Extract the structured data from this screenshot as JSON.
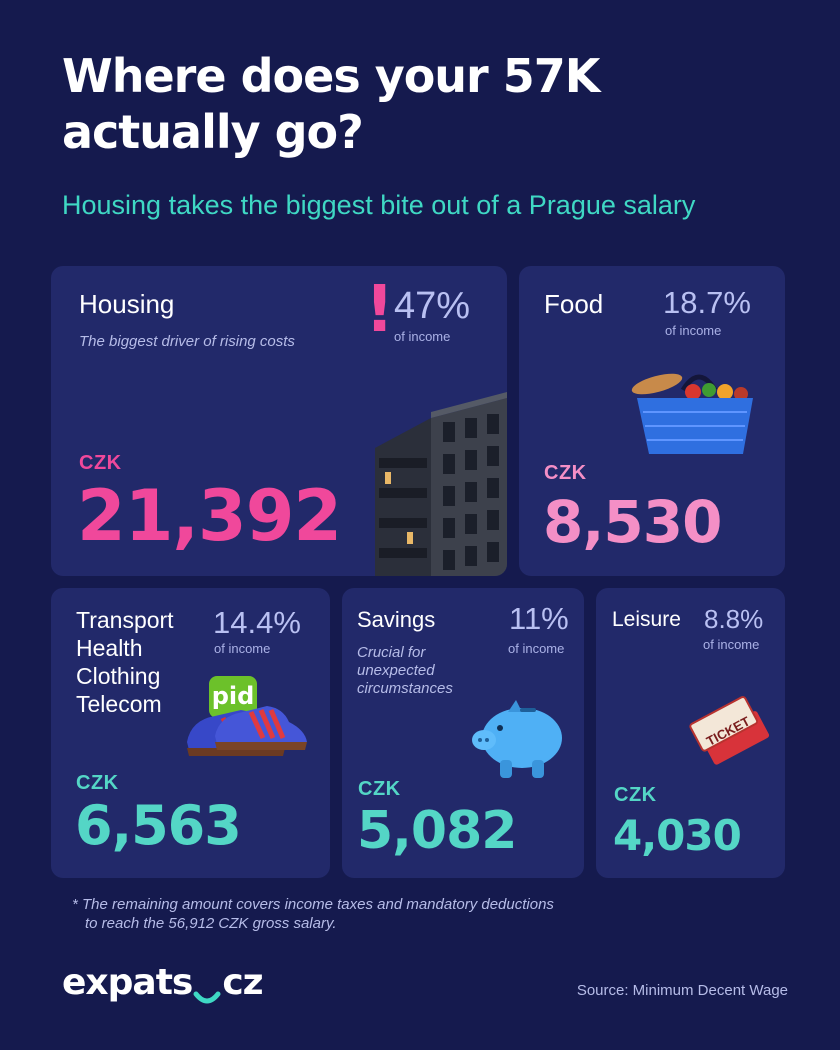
{
  "header": {
    "title_line1": "Where does your 57K",
    "title_line2": "actually go?",
    "subtitle": "Housing takes the biggest bite out of a Prague salary"
  },
  "cards": {
    "housing": {
      "title": "Housing",
      "note": "The biggest driver of rising costs",
      "percent": "47%",
      "percent_label": "of income",
      "alert": "!",
      "currency": "CZK",
      "amount": "21,392",
      "icon": "apartment-building-icon"
    },
    "food": {
      "title": "Food",
      "percent": "18.7%",
      "percent_label": "of income",
      "currency": "CZK",
      "amount": "8,530",
      "icon": "grocery-basket-icon"
    },
    "transport": {
      "title_lines": [
        "Transport",
        "Health",
        "Clothing",
        "Telecom"
      ],
      "percent": "14.4%",
      "percent_label": "of income",
      "badge": "pid",
      "currency": "CZK",
      "amount": "6,563",
      "icon": "sneakers-icon"
    },
    "savings": {
      "title": "Savings",
      "note_lines": [
        "Crucial for",
        "unexpected",
        "circumstances"
      ],
      "percent": "11%",
      "percent_label": "of income",
      "currency": "CZK",
      "amount": "5,082",
      "icon": "piggy-bank-icon"
    },
    "leisure": {
      "title": "Leisure",
      "percent": "8.8%",
      "percent_label": "of income",
      "ticket_text": "TICKET",
      "currency": "CZK",
      "amount": "4,030",
      "icon": "ticket-icon"
    }
  },
  "footnote": {
    "line1": "* The remaining amount covers income taxes and mandatory deductions",
    "line2": "to reach the 56,912 CZK gross salary."
  },
  "footer": {
    "logo_left": "expats",
    "logo_right": "cz",
    "source": "Source: Minimum Decent Wage"
  },
  "colors": {
    "background": "#151a4e",
    "card": "#22296a",
    "accent_teal": "#3fd8c4",
    "accent_pink": "#f0489b",
    "accent_light_pink": "#f48fc6"
  }
}
